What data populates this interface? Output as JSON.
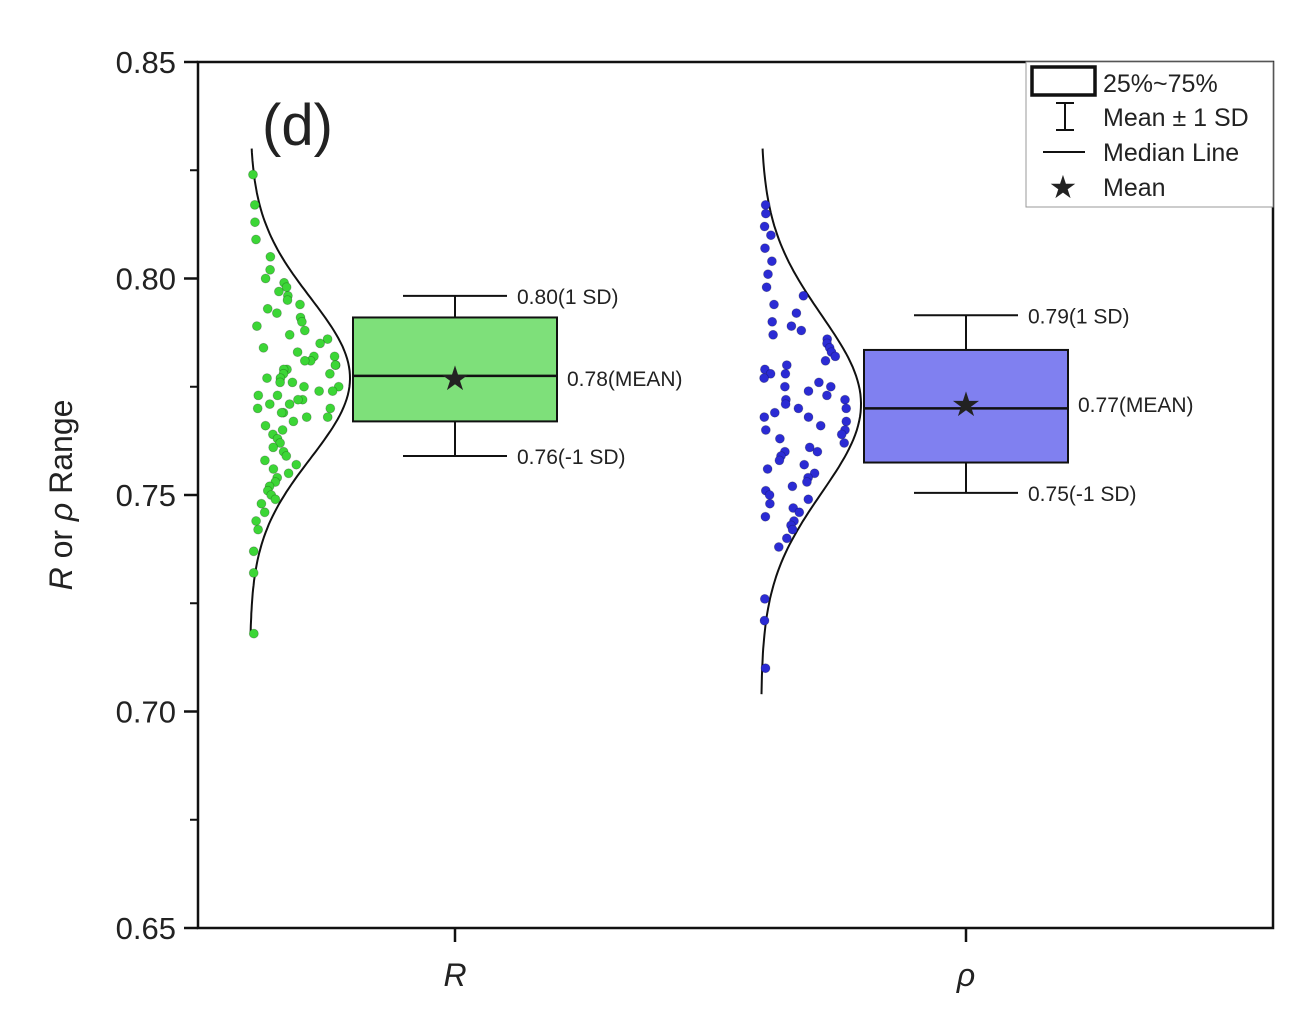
{
  "chart_data": {
    "type": "box",
    "panel_label": "(d)",
    "ylabel": {
      "prefix": "R",
      "middle": " or ",
      "symbol": "ρ",
      "suffix": " Range"
    },
    "ylim": [
      0.65,
      0.85
    ],
    "yticks": [
      "0.65",
      "0.70",
      "0.75",
      "0.80",
      "0.85"
    ],
    "grid": false,
    "legend_placement": "top-right",
    "legend": [
      "25%~75%",
      "Mean ± 1 SD",
      "Median Line",
      "Mean"
    ],
    "series": [
      {
        "category": "R",
        "color": "#7ee07a",
        "point_color": "#3cd636",
        "q1": 0.767,
        "q3": 0.791,
        "median": 0.7775,
        "mean": 0.777,
        "sd_low": 0.759,
        "sd_high": 0.796,
        "sd": 0.0185,
        "labels": {
          "high": "0.80(1 SD)",
          "mean": "0.78(MEAN)",
          "low": "0.76(-1 SD)"
        },
        "curve_range": [
          0.718,
          0.83
        ],
        "points": [
          0.824,
          0.817,
          0.813,
          0.809,
          0.805,
          0.802,
          0.8,
          0.799,
          0.798,
          0.797,
          0.796,
          0.795,
          0.794,
          0.793,
          0.792,
          0.791,
          0.79,
          0.789,
          0.788,
          0.787,
          0.786,
          0.785,
          0.784,
          0.783,
          0.782,
          0.782,
          0.781,
          0.781,
          0.78,
          0.78,
          0.779,
          0.779,
          0.778,
          0.778,
          0.777,
          0.777,
          0.776,
          0.776,
          0.775,
          0.775,
          0.774,
          0.774,
          0.773,
          0.773,
          0.772,
          0.772,
          0.771,
          0.771,
          0.77,
          0.77,
          0.769,
          0.769,
          0.768,
          0.768,
          0.767,
          0.766,
          0.765,
          0.764,
          0.763,
          0.762,
          0.761,
          0.76,
          0.759,
          0.758,
          0.757,
          0.756,
          0.755,
          0.754,
          0.753,
          0.752,
          0.751,
          0.75,
          0.749,
          0.748,
          0.746,
          0.744,
          0.742,
          0.737,
          0.732,
          0.718
        ]
      },
      {
        "category": "ρ",
        "color": "#8080f0",
        "point_color": "#2b2bd4",
        "q1": 0.7575,
        "q3": 0.7835,
        "median": 0.77,
        "mean": 0.771,
        "sd_low": 0.7505,
        "sd_high": 0.7915,
        "sd": 0.0205,
        "labels": {
          "high": "0.79(1 SD)",
          "mean": "0.77(MEAN)",
          "low": "0.75(-1 SD)"
        },
        "curve_range": [
          0.704,
          0.83
        ],
        "points": [
          0.817,
          0.815,
          0.812,
          0.81,
          0.807,
          0.804,
          0.801,
          0.798,
          0.796,
          0.794,
          0.792,
          0.79,
          0.789,
          0.788,
          0.787,
          0.786,
          0.785,
          0.784,
          0.783,
          0.782,
          0.781,
          0.78,
          0.779,
          0.778,
          0.778,
          0.777,
          0.776,
          0.775,
          0.775,
          0.774,
          0.773,
          0.772,
          0.772,
          0.771,
          0.77,
          0.77,
          0.769,
          0.768,
          0.768,
          0.767,
          0.766,
          0.765,
          0.765,
          0.764,
          0.763,
          0.762,
          0.761,
          0.76,
          0.76,
          0.759,
          0.758,
          0.757,
          0.756,
          0.755,
          0.754,
          0.753,
          0.752,
          0.751,
          0.75,
          0.749,
          0.748,
          0.747,
          0.746,
          0.745,
          0.744,
          0.743,
          0.742,
          0.74,
          0.738,
          0.726,
          0.721,
          0.71
        ]
      }
    ]
  }
}
